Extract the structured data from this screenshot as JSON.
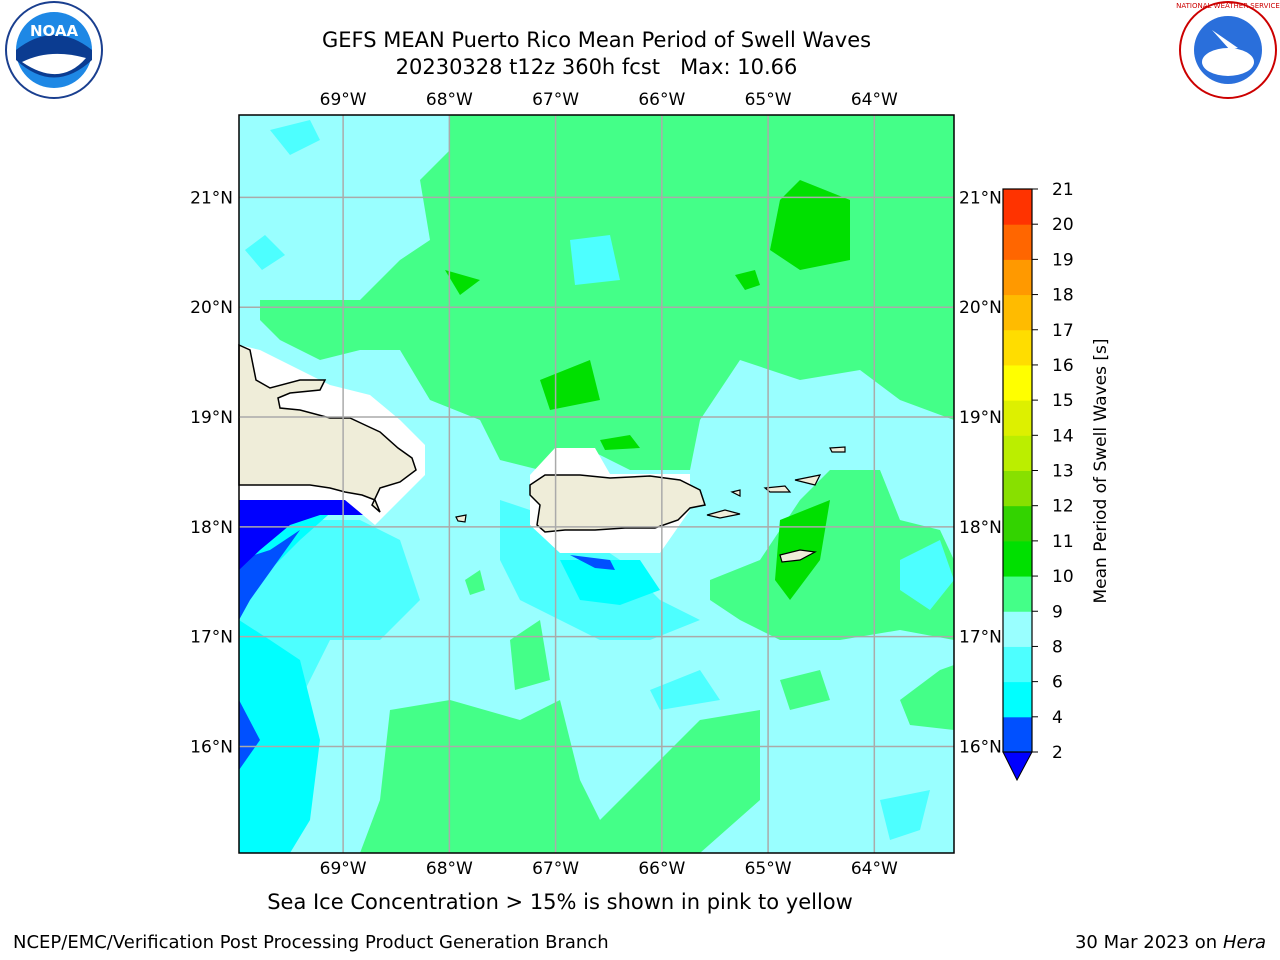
{
  "title": {
    "line1": "GEFS MEAN Puerto Rico Mean Period of Swell Waves",
    "line2_run": "20230328 t12z 360h fcst",
    "line2_max": "Max: 10.66"
  },
  "note": "Sea Ice Concentration > 15% is shown in pink to yellow",
  "credit_left": "NCEP/EMC/Verification Post Processing Product Generation Branch",
  "credit_right_date": "30 Mar 2023 on",
  "credit_right_host": "Hera",
  "logos": {
    "left": "NOAA",
    "right": "NATIONAL WEATHER SERVICE"
  },
  "map": {
    "lon_ticks": [
      "69°W",
      "68°W",
      "67°W",
      "66°W",
      "65°W",
      "64°W"
    ],
    "lat_ticks": [
      "21°N",
      "20°N",
      "19°N",
      "18°N",
      "17°N",
      "16°N"
    ],
    "lon_range": [
      -69.98,
      -63.25
    ],
    "lat_range": [
      15.03,
      21.75
    ],
    "grid": true
  },
  "colorbar": {
    "label": "Mean Period of Swell Waves [s]",
    "ticks": [
      "2",
      "4",
      "6",
      "8",
      "9",
      "10",
      "11",
      "12",
      "13",
      "14",
      "15",
      "16",
      "17",
      "18",
      "19",
      "20",
      "21"
    ],
    "colors": [
      "#0050ff",
      "#00ffff",
      "#4dffff",
      "#99ffff",
      "#44ff88",
      "#00e000",
      "#33d300",
      "#88e000",
      "#bbee00",
      "#ddf000",
      "#ffff00",
      "#ffdd00",
      "#ffbb00",
      "#ff9900",
      "#ff6600",
      "#ff3300",
      "#ff0000"
    ],
    "under_color": "#0000ff"
  },
  "colors": {
    "land": "#efedd9",
    "ocean_base": "#99ffff",
    "grid": "#aaaaaa"
  }
}
